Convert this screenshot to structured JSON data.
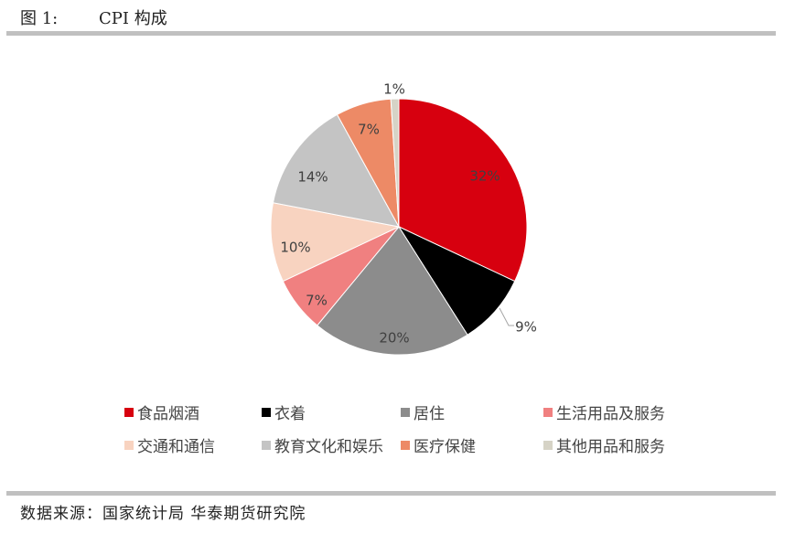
{
  "header": {
    "figure_number": "图 1:",
    "title": "CPI 构成"
  },
  "footer": {
    "source": "数据来源：国家统计局 华泰期货研究院"
  },
  "chart_data": {
    "type": "pie",
    "title": "CPI 构成",
    "start_angle": "12 o'clock, clockwise",
    "legend_position": "bottom",
    "slices": [
      {
        "label": "食品烟酒",
        "value": 32,
        "display": "32%",
        "color": "#d7000f"
      },
      {
        "label": "衣着",
        "value": 9,
        "display": "9%",
        "color": "#000000"
      },
      {
        "label": "居住",
        "value": 20,
        "display": "20%",
        "color": "#8c8c8c"
      },
      {
        "label": "生活用品及服务",
        "value": 7,
        "display": "7%",
        "color": "#f08080"
      },
      {
        "label": "交通和通信",
        "value": 10,
        "display": "10%",
        "color": "#f8d3c0"
      },
      {
        "label": "教育文化和娱乐",
        "value": 14,
        "display": "14%",
        "color": "#c4c4c4"
      },
      {
        "label": "医疗保健",
        "value": 7,
        "display": "7%",
        "color": "#ed8a66"
      },
      {
        "label": "其他用品和服务",
        "value": 1,
        "display": "1%",
        "color": "#d6d3c6"
      }
    ]
  }
}
